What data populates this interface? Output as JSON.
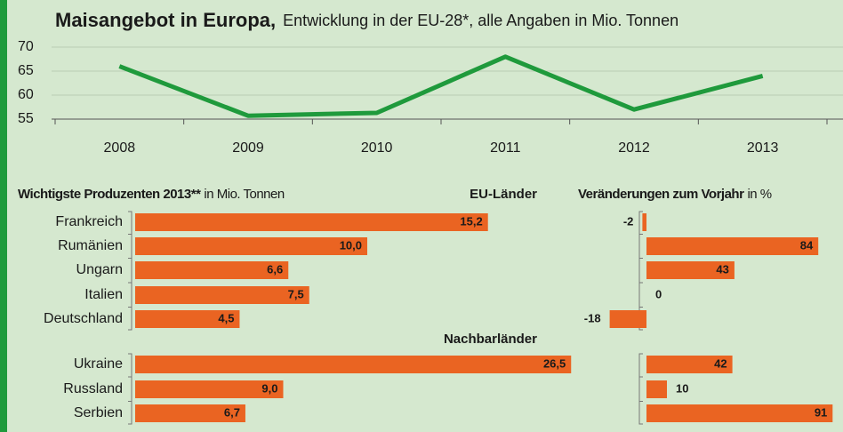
{
  "chart_data": [
    {
      "type": "line",
      "title": "Maisangebot in Europa,",
      "subtitle": "Entwicklung in der EU-28*, alle Angaben in Mio. Tonnen",
      "categories": [
        "2008",
        "2009",
        "2010",
        "2011",
        "2012",
        "2013"
      ],
      "values": [
        66,
        55.7,
        56.3,
        68,
        57,
        64
      ],
      "color": "#1f9a3c",
      "ylim": [
        55,
        70
      ],
      "yticks": [
        55,
        60,
        65,
        70
      ],
      "grid": true
    },
    {
      "type": "hbar",
      "title": "Wichtigste Produzenten 2013**",
      "subtitle": "in Mio. Tonnen",
      "color": "#ea6422",
      "groups": [
        {
          "name": "EU-Länder",
          "categories": [
            "Frankreich",
            "Rumänien",
            "Ungarn",
            "Italien",
            "Deutschland"
          ],
          "values": [
            15.2,
            10.0,
            6.6,
            7.5,
            4.5
          ],
          "value_labels": [
            "15,2",
            "10,0",
            "6,6",
            "7,5",
            "4,5"
          ]
        },
        {
          "name": "Nachbarländer",
          "categories": [
            "Ukraine",
            "Russland",
            "Serbien"
          ],
          "values": [
            26.5,
            9.0,
            6.7
          ],
          "value_labels": [
            "26,5",
            "9,0",
            "6,7"
          ]
        }
      ]
    },
    {
      "type": "change",
      "title": "Veränderungen zum Vorjahr",
      "subtitle": "in %",
      "color": "#ea6422",
      "groups": [
        {
          "values": [
            -2,
            84,
            43,
            0,
            -18
          ]
        },
        {
          "values": [
            42,
            10,
            91
          ]
        }
      ]
    }
  ]
}
